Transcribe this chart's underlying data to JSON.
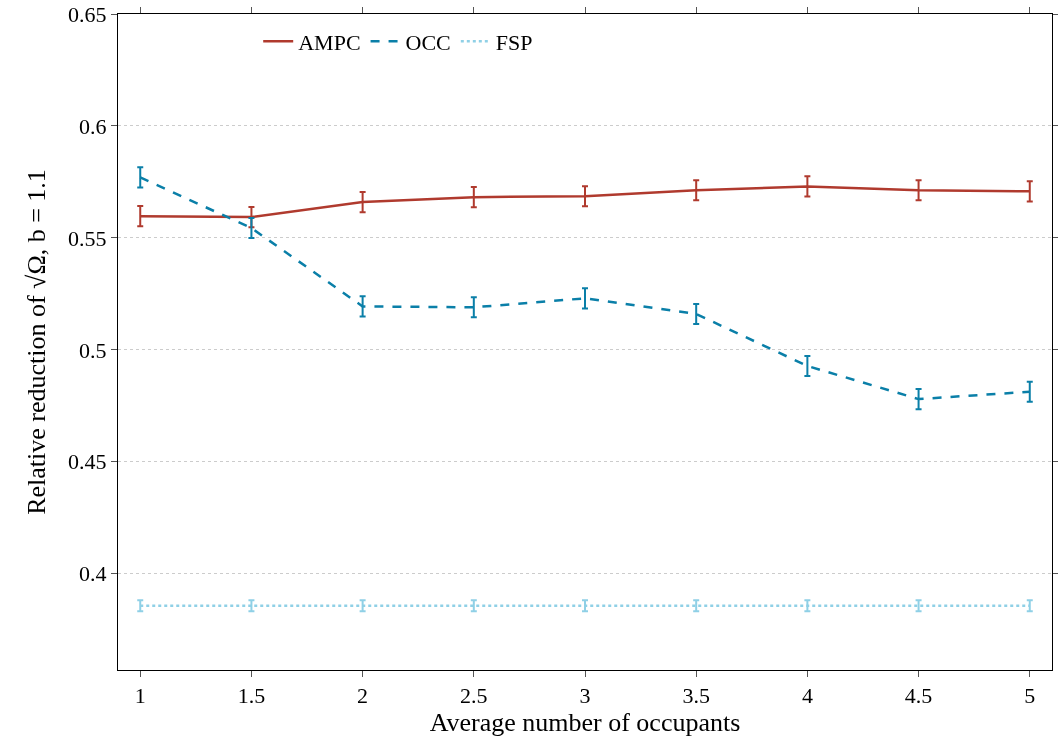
{
  "chart_data": {
    "type": "line",
    "xlabel": "Average number of occupants",
    "ylabel": "Relative reduction of √Ω, b = 1.1",
    "x": [
      1,
      1.5,
      2,
      2.5,
      3,
      3.5,
      4,
      4.5,
      5
    ],
    "series": [
      {
        "name": "AMPC",
        "color": "#b03a2e",
        "line_style": "solid",
        "values": [
          0.5597,
          0.5593,
          0.566,
          0.5682,
          0.5686,
          0.5713,
          0.573,
          0.5713,
          0.5708
        ],
        "errors": [
          0.0045,
          0.0045,
          0.0045,
          0.0045,
          0.0045,
          0.0045,
          0.0045,
          0.0045,
          0.0045
        ]
      },
      {
        "name": "OCC",
        "color": "#0a7fa8",
        "line_style": "dashed",
        "values": [
          0.577,
          0.5544,
          0.5194,
          0.519,
          0.523,
          0.516,
          0.4928,
          0.478,
          0.4813
        ],
        "errors": [
          0.0045,
          0.0045,
          0.0045,
          0.0045,
          0.0045,
          0.0045,
          0.0045,
          0.0045,
          0.0045
        ]
      },
      {
        "name": "FSP",
        "color": "#8fd0e6",
        "line_style": "dotted",
        "values": [
          0.3857,
          0.3857,
          0.3857,
          0.3857,
          0.3857,
          0.3857,
          0.3857,
          0.3857,
          0.3857
        ],
        "errors": [
          0.0025,
          0.0025,
          0.0025,
          0.0025,
          0.0025,
          0.0025,
          0.0025,
          0.0025,
          0.0025
        ]
      }
    ],
    "xlim": [
      0.9,
      5.1
    ],
    "xticks": [
      1,
      1.5,
      2,
      2.5,
      3,
      3.5,
      4,
      4.5,
      5
    ],
    "ylim": [
      0.357,
      0.65
    ],
    "yticks": [
      0.4,
      0.45,
      0.5,
      0.55,
      0.6,
      0.65
    ],
    "grid": "y",
    "legend": "top",
    "marker": "none"
  }
}
